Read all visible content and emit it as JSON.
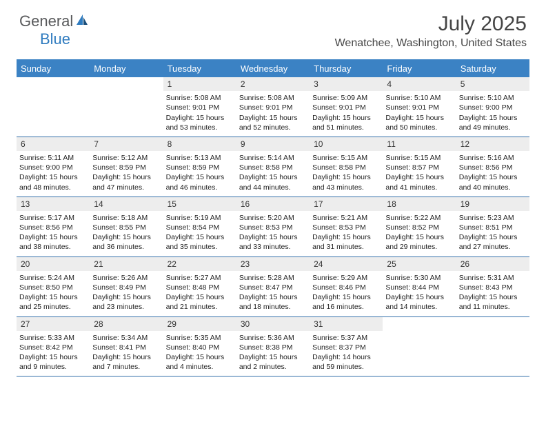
{
  "logo": {
    "text1": "General",
    "text2": "Blue"
  },
  "title": "July 2025",
  "location": "Wenatchee, Washington, United States",
  "dayHeaders": [
    "Sunday",
    "Monday",
    "Tuesday",
    "Wednesday",
    "Thursday",
    "Friday",
    "Saturday"
  ],
  "colors": {
    "header_bg": "#3b82c4",
    "row_border": "#2f6da8",
    "daynum_bg": "#ededed",
    "text": "#222222",
    "title_text": "#454545"
  },
  "typography": {
    "title_fontsize": 30,
    "location_fontsize": 16,
    "dayheader_fontsize": 13,
    "cell_fontsize": 10.5
  },
  "layout": {
    "columns": 7,
    "rows": 5,
    "leading_blanks": 2
  },
  "days": [
    {
      "n": "1",
      "sunrise": "5:08 AM",
      "sunset": "9:01 PM",
      "daylight": "15 hours and 53 minutes."
    },
    {
      "n": "2",
      "sunrise": "5:08 AM",
      "sunset": "9:01 PM",
      "daylight": "15 hours and 52 minutes."
    },
    {
      "n": "3",
      "sunrise": "5:09 AM",
      "sunset": "9:01 PM",
      "daylight": "15 hours and 51 minutes."
    },
    {
      "n": "4",
      "sunrise": "5:10 AM",
      "sunset": "9:01 PM",
      "daylight": "15 hours and 50 minutes."
    },
    {
      "n": "5",
      "sunrise": "5:10 AM",
      "sunset": "9:00 PM",
      "daylight": "15 hours and 49 minutes."
    },
    {
      "n": "6",
      "sunrise": "5:11 AM",
      "sunset": "9:00 PM",
      "daylight": "15 hours and 48 minutes."
    },
    {
      "n": "7",
      "sunrise": "5:12 AM",
      "sunset": "8:59 PM",
      "daylight": "15 hours and 47 minutes."
    },
    {
      "n": "8",
      "sunrise": "5:13 AM",
      "sunset": "8:59 PM",
      "daylight": "15 hours and 46 minutes."
    },
    {
      "n": "9",
      "sunrise": "5:14 AM",
      "sunset": "8:58 PM",
      "daylight": "15 hours and 44 minutes."
    },
    {
      "n": "10",
      "sunrise": "5:15 AM",
      "sunset": "8:58 PM",
      "daylight": "15 hours and 43 minutes."
    },
    {
      "n": "11",
      "sunrise": "5:15 AM",
      "sunset": "8:57 PM",
      "daylight": "15 hours and 41 minutes."
    },
    {
      "n": "12",
      "sunrise": "5:16 AM",
      "sunset": "8:56 PM",
      "daylight": "15 hours and 40 minutes."
    },
    {
      "n": "13",
      "sunrise": "5:17 AM",
      "sunset": "8:56 PM",
      "daylight": "15 hours and 38 minutes."
    },
    {
      "n": "14",
      "sunrise": "5:18 AM",
      "sunset": "8:55 PM",
      "daylight": "15 hours and 36 minutes."
    },
    {
      "n": "15",
      "sunrise": "5:19 AM",
      "sunset": "8:54 PM",
      "daylight": "15 hours and 35 minutes."
    },
    {
      "n": "16",
      "sunrise": "5:20 AM",
      "sunset": "8:53 PM",
      "daylight": "15 hours and 33 minutes."
    },
    {
      "n": "17",
      "sunrise": "5:21 AM",
      "sunset": "8:53 PM",
      "daylight": "15 hours and 31 minutes."
    },
    {
      "n": "18",
      "sunrise": "5:22 AM",
      "sunset": "8:52 PM",
      "daylight": "15 hours and 29 minutes."
    },
    {
      "n": "19",
      "sunrise": "5:23 AM",
      "sunset": "8:51 PM",
      "daylight": "15 hours and 27 minutes."
    },
    {
      "n": "20",
      "sunrise": "5:24 AM",
      "sunset": "8:50 PM",
      "daylight": "15 hours and 25 minutes."
    },
    {
      "n": "21",
      "sunrise": "5:26 AM",
      "sunset": "8:49 PM",
      "daylight": "15 hours and 23 minutes."
    },
    {
      "n": "22",
      "sunrise": "5:27 AM",
      "sunset": "8:48 PM",
      "daylight": "15 hours and 21 minutes."
    },
    {
      "n": "23",
      "sunrise": "5:28 AM",
      "sunset": "8:47 PM",
      "daylight": "15 hours and 18 minutes."
    },
    {
      "n": "24",
      "sunrise": "5:29 AM",
      "sunset": "8:46 PM",
      "daylight": "15 hours and 16 minutes."
    },
    {
      "n": "25",
      "sunrise": "5:30 AM",
      "sunset": "8:44 PM",
      "daylight": "15 hours and 14 minutes."
    },
    {
      "n": "26",
      "sunrise": "5:31 AM",
      "sunset": "8:43 PM",
      "daylight": "15 hours and 11 minutes."
    },
    {
      "n": "27",
      "sunrise": "5:33 AM",
      "sunset": "8:42 PM",
      "daylight": "15 hours and 9 minutes."
    },
    {
      "n": "28",
      "sunrise": "5:34 AM",
      "sunset": "8:41 PM",
      "daylight": "15 hours and 7 minutes."
    },
    {
      "n": "29",
      "sunrise": "5:35 AM",
      "sunset": "8:40 PM",
      "daylight": "15 hours and 4 minutes."
    },
    {
      "n": "30",
      "sunrise": "5:36 AM",
      "sunset": "8:38 PM",
      "daylight": "15 hours and 2 minutes."
    },
    {
      "n": "31",
      "sunrise": "5:37 AM",
      "sunset": "8:37 PM",
      "daylight": "14 hours and 59 minutes."
    }
  ],
  "labels": {
    "sunrise": "Sunrise: ",
    "sunset": "Sunset: ",
    "daylight": "Daylight: "
  }
}
